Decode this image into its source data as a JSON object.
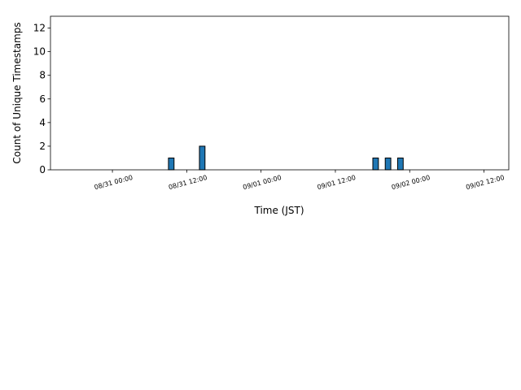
{
  "chart_data": {
    "type": "histogram",
    "xlabel": "Time (JST)",
    "ylabel": "Count of Unique Timestamps",
    "bins": [
      "08/30 15:00",
      "08/30 16:00",
      "08/30 17:00",
      "08/30 18:00",
      "08/30 19:00",
      "08/30 20:00",
      "08/30 21:00",
      "08/30 22:00",
      "08/30 23:00",
      "08/31 00:00",
      "08/31 01:00",
      "08/31 02:00",
      "08/31 03:00",
      "08/31 04:00",
      "08/31 05:00",
      "08/31 06:00",
      "08/31 07:00",
      "08/31 08:00",
      "08/31 09:00",
      "08/31 10:00",
      "08/31 11:00",
      "08/31 12:00",
      "08/31 13:00",
      "08/31 14:00",
      "08/31 15:00",
      "08/31 16:00",
      "08/31 17:00",
      "08/31 18:00",
      "08/31 19:00",
      "08/31 20:00",
      "08/31 21:00",
      "08/31 22:00",
      "08/31 23:00",
      "09/01 00:00",
      "09/01 01:00",
      "09/01 02:00",
      "09/01 03:00",
      "09/01 04:00",
      "09/01 05:00",
      "09/01 06:00",
      "09/01 07:00",
      "09/01 08:00",
      "09/01 09:00",
      "09/01 10:00",
      "09/01 11:00",
      "09/01 12:00",
      "09/01 13:00",
      "09/01 14:00",
      "09/01 15:00",
      "09/01 16:00",
      "09/01 17:00",
      "09/01 18:00",
      "09/01 19:00",
      "09/01 20:00",
      "09/01 21:00",
      "09/01 22:00",
      "09/01 23:00",
      "09/02 00:00",
      "09/02 01:00",
      "09/02 02:00",
      "09/02 03:00",
      "09/02 04:00",
      "09/02 05:00",
      "09/02 06:00",
      "09/02 07:00",
      "09/02 08:00",
      "09/02 09:00",
      "09/02 10:00",
      "09/02 11:00",
      "09/02 12:00",
      "09/02 13:00",
      "09/02 14:00"
    ],
    "values": [
      0,
      0,
      0,
      0,
      0,
      0,
      0,
      0,
      0,
      0,
      0,
      0,
      0,
      0,
      0,
      0,
      0,
      0,
      1,
      0,
      0,
      0,
      0,
      2,
      0,
      0,
      0,
      0,
      0,
      0,
      0,
      0,
      0,
      0,
      0,
      0,
      0,
      0,
      0,
      0,
      0,
      0,
      0,
      0,
      0,
      0,
      0,
      0,
      0,
      0,
      0,
      1,
      0,
      1,
      0,
      1,
      0,
      0,
      0,
      0,
      0,
      0,
      0,
      0,
      0,
      0,
      0,
      0,
      0,
      0,
      0
    ],
    "color": "#1f77b4",
    "edgecolor": "#000000",
    "xlim": [
      "08/30 14:00",
      "09/02 16:00"
    ],
    "xticks": [
      "08/31 00:00",
      "08/31 12:00",
      "09/01 00:00",
      "09/01 12:00",
      "09/02 00:00",
      "09/02 12:00"
    ],
    "ylim": [
      0,
      13
    ],
    "yticks": [
      0,
      2,
      4,
      6,
      8,
      10,
      12
    ]
  }
}
